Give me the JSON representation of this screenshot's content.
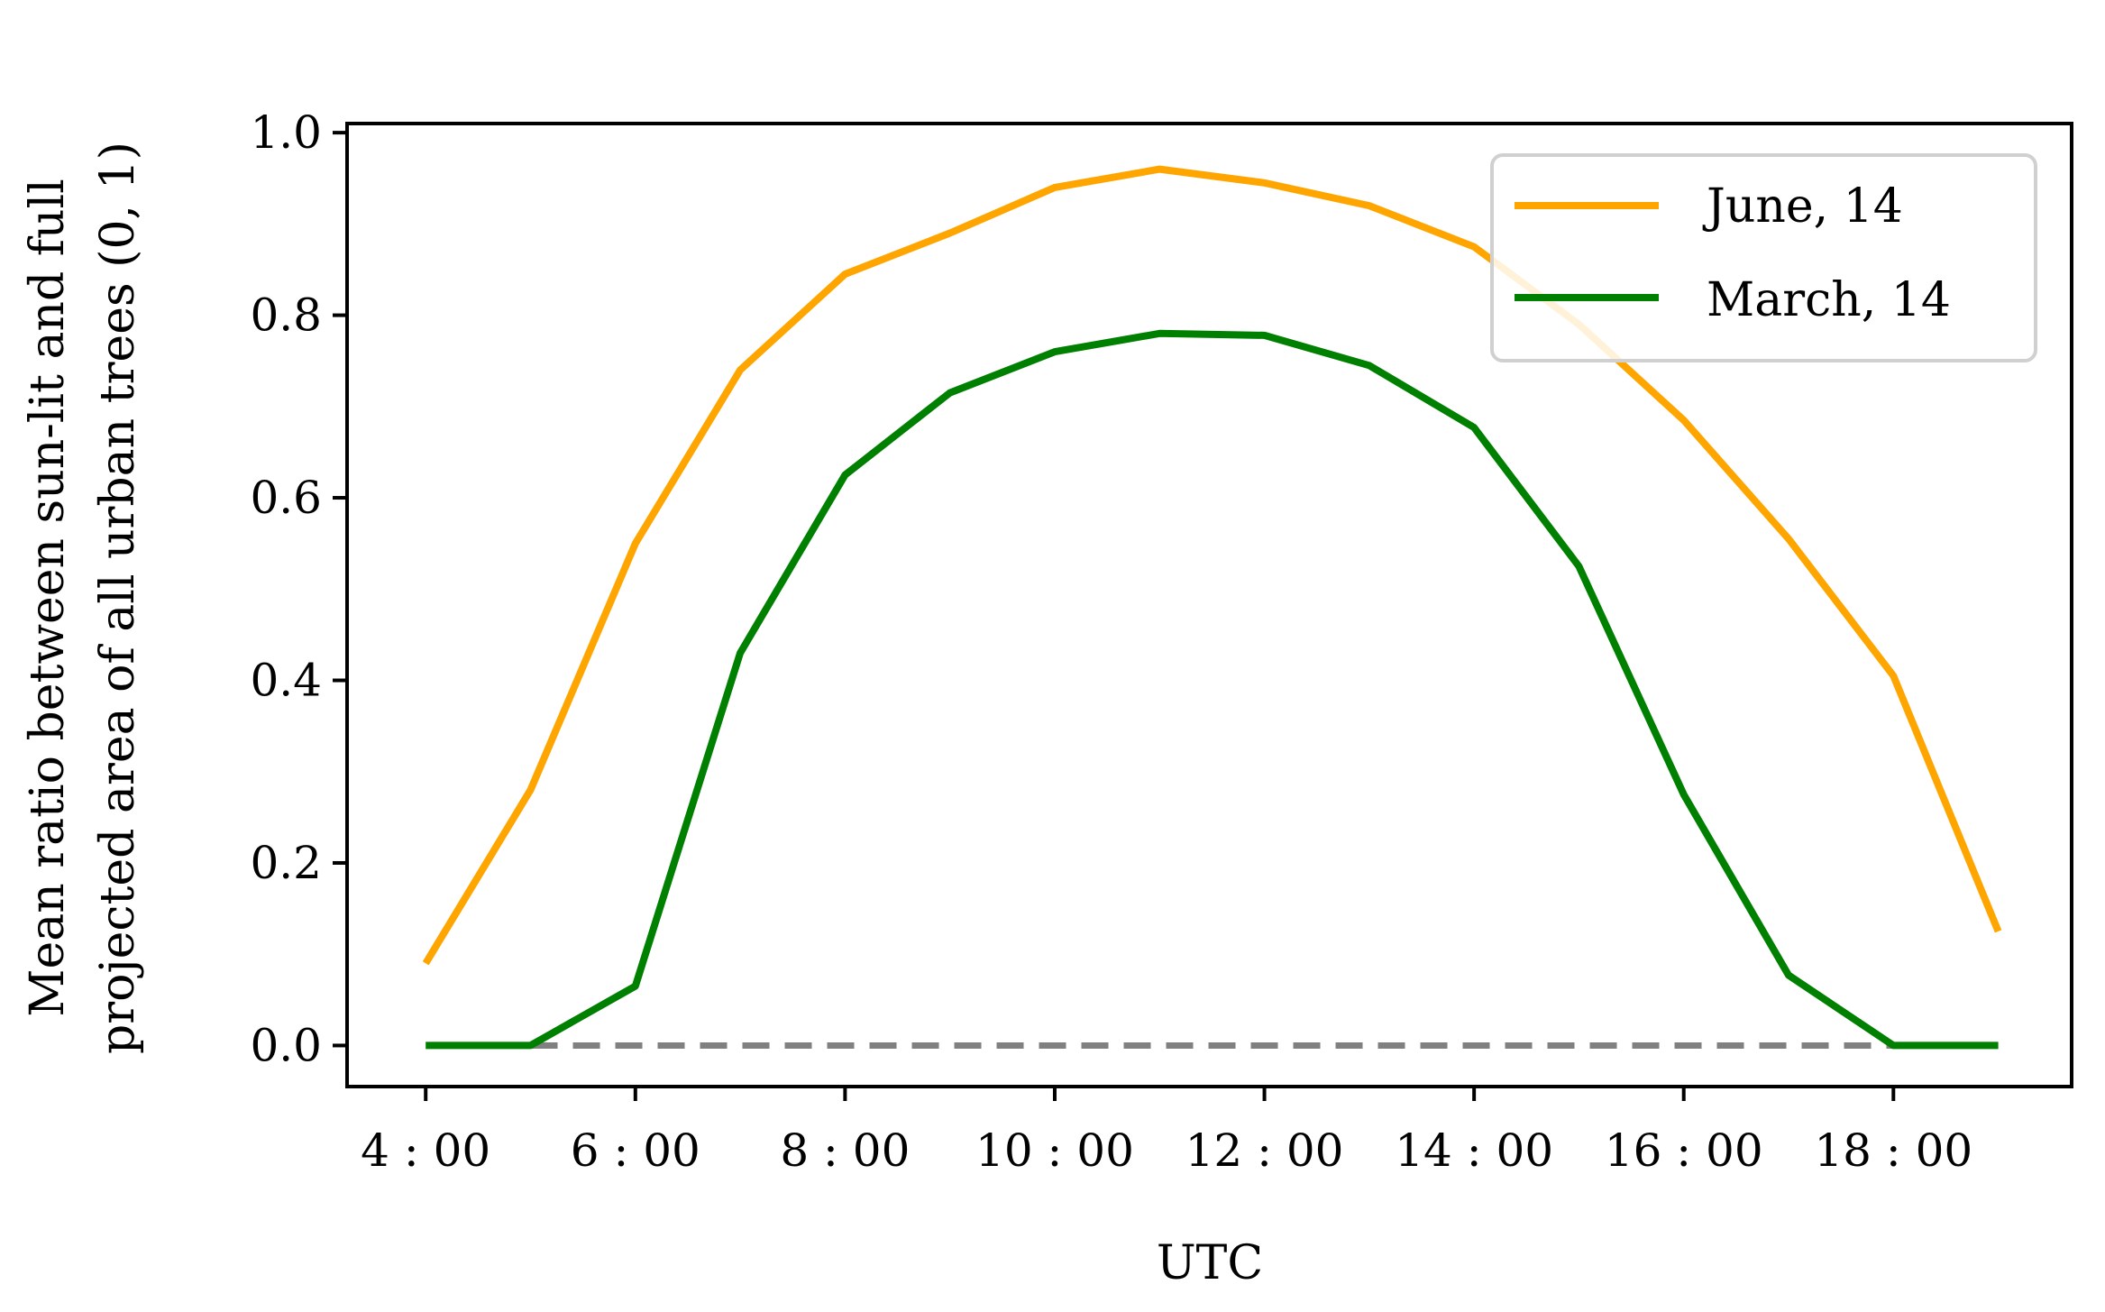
{
  "chart_data": {
    "type": "line",
    "title": "",
    "xlabel": "UTC",
    "ylabel_lines": [
      "Mean ratio between sun-lit and full",
      "projected area of all urban trees (0, 1)"
    ],
    "xlim": [
      3.25,
      19.7
    ],
    "ylim": [
      -0.045,
      1.01
    ],
    "x_ticks": [
      4,
      6,
      8,
      10,
      12,
      14,
      16,
      18
    ],
    "x_tick_labels": [
      "4 : 00",
      "6 : 00",
      "8 : 00",
      "10 : 00",
      "12 : 00",
      "14 : 00",
      "16 : 00",
      "18 : 00"
    ],
    "y_ticks": [
      0.0,
      0.2,
      0.4,
      0.6,
      0.8,
      1.0
    ],
    "y_tick_labels": [
      "0.0",
      "0.2",
      "0.4",
      "0.6",
      "0.8",
      "1.0"
    ],
    "grid": false,
    "legend_position": "top-right",
    "series": [
      {
        "name": "June, 14",
        "color": "#FFA500",
        "x": [
          4,
          5,
          6,
          7,
          8,
          9,
          10,
          11,
          12,
          13,
          14,
          15,
          16,
          17,
          18,
          19
        ],
        "y": [
          0.09,
          0.28,
          0.55,
          0.74,
          0.845,
          0.89,
          0.94,
          0.96,
          0.945,
          0.92,
          0.875,
          0.79,
          0.685,
          0.555,
          0.405,
          0.125
        ]
      },
      {
        "name": "March, 14",
        "color": "#008000",
        "x": [
          4,
          5,
          6,
          7,
          8,
          9,
          10,
          11,
          12,
          13,
          14,
          15,
          16,
          17,
          18,
          19
        ],
        "y": [
          0.0,
          0.0,
          0.065,
          0.43,
          0.625,
          0.715,
          0.76,
          0.78,
          0.778,
          0.745,
          0.677,
          0.525,
          0.275,
          0.077,
          0.0,
          0.0
        ]
      }
    ],
    "reference_line": {
      "color": "#808080",
      "style": "dashed",
      "x": [
        5,
        18
      ],
      "y": 0.0
    }
  }
}
